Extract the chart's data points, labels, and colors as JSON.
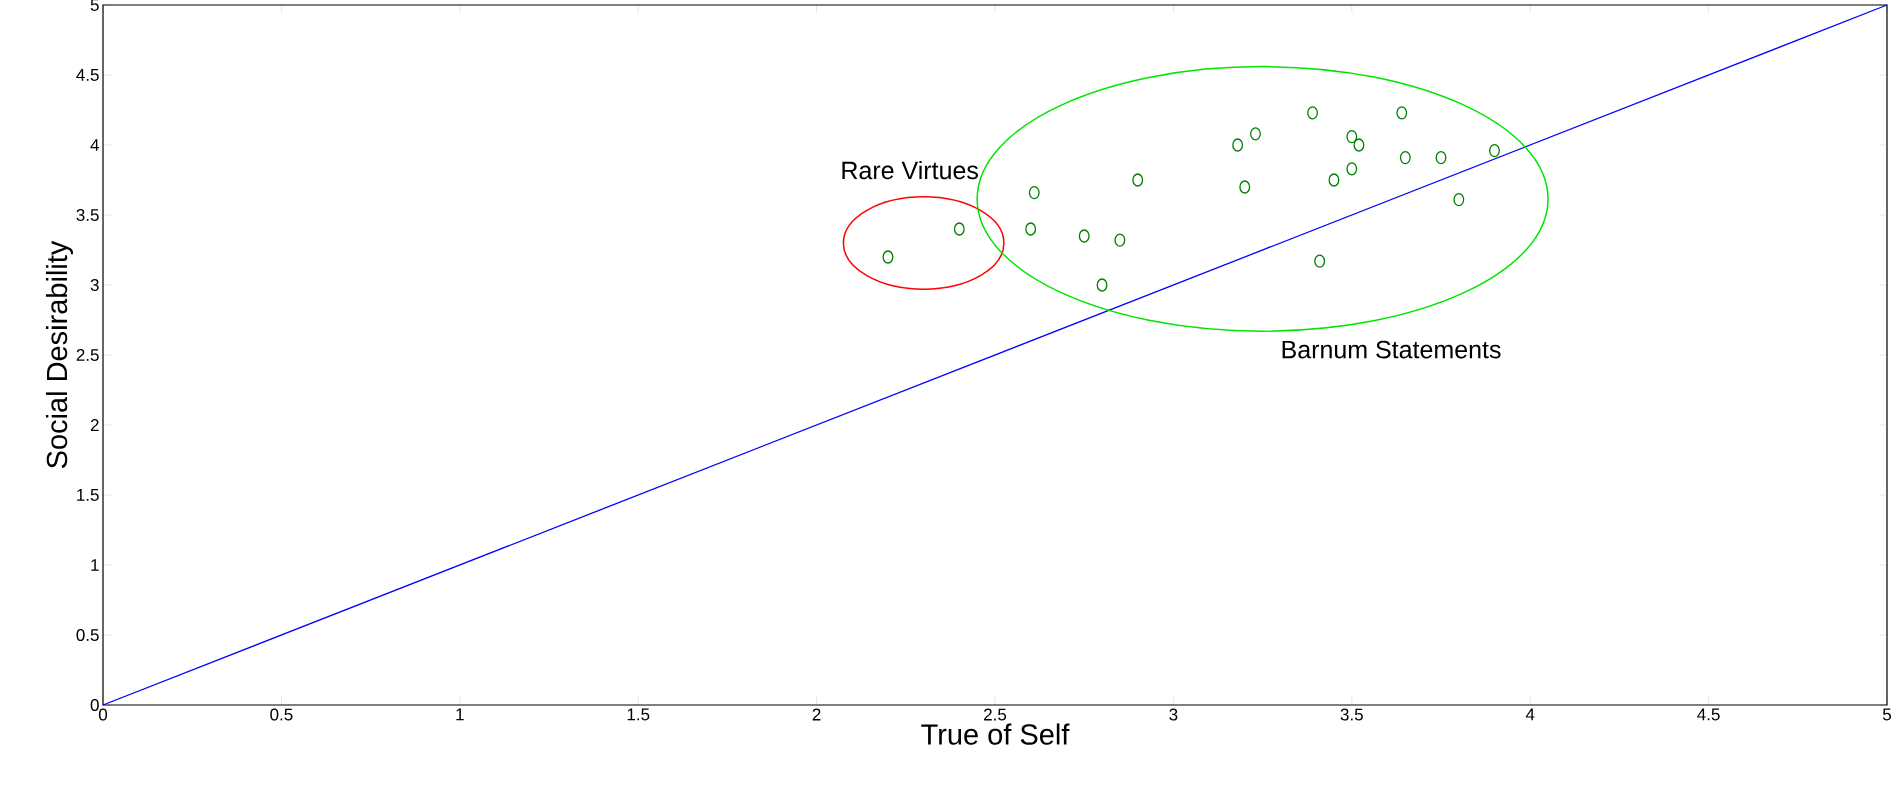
{
  "chart_data": {
    "type": "scatter",
    "xlabel": "True of Self",
    "ylabel": "Social Desirability",
    "xlim": [
      0,
      5
    ],
    "ylim": [
      0,
      5
    ],
    "xticks": [
      0,
      0.5,
      1,
      1.5,
      2,
      2.5,
      3,
      3.5,
      4,
      4.5,
      5
    ],
    "yticks": [
      0,
      0.5,
      1,
      1.5,
      2,
      2.5,
      3,
      3.5,
      4,
      4.5,
      5
    ],
    "grid": false,
    "series": [
      {
        "color": "#008000",
        "marker": "circle",
        "x": [
          2.2,
          2.4
        ],
        "values": [
          3.2,
          3.4
        ]
      },
      {
        "color": "#008000",
        "marker": "circle",
        "x": [
          2.6,
          2.61,
          2.75,
          2.8,
          2.85,
          2.9,
          3.18,
          3.2,
          3.23,
          3.39,
          3.41,
          3.45,
          3.5,
          3.5,
          3.52,
          3.64,
          3.65,
          3.75,
          3.8,
          3.9
        ],
        "values": [
          3.4,
          3.66,
          3.35,
          3.0,
          3.32,
          3.75,
          4.0,
          3.7,
          4.08,
          4.23,
          3.17,
          3.75,
          4.06,
          3.83,
          4.0,
          4.23,
          3.91,
          3.91,
          3.61,
          3.96
        ]
      },
      {
        "type": "line",
        "color": "#0000ff",
        "x": [
          0,
          5
        ],
        "values": [
          0,
          5
        ]
      }
    ],
    "annotations": [
      "Rare Virtues",
      "Barnum Statements"
    ]
  }
}
